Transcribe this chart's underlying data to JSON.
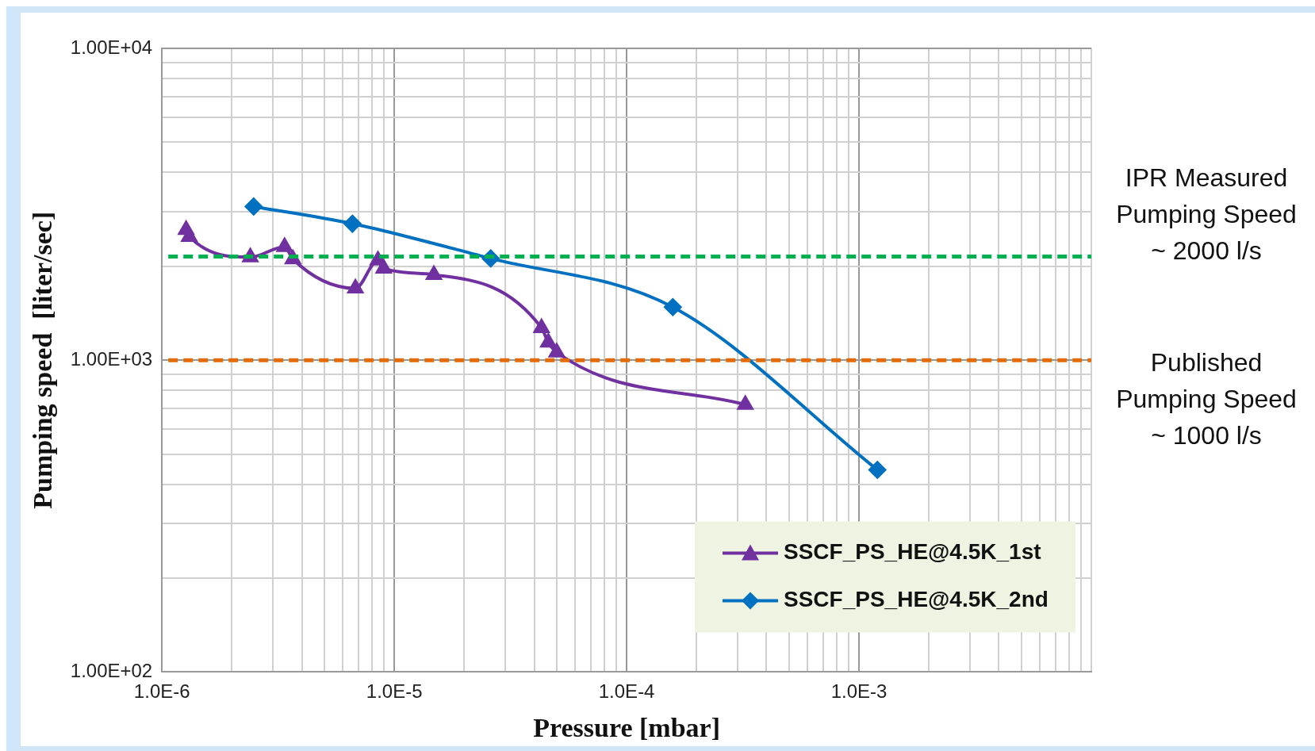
{
  "chart_data": {
    "type": "line",
    "xlabel": "Pressure [mbar]",
    "ylabel": "Pumping speed  [liter/sec]",
    "log": "xy",
    "grid": true,
    "legend": "bottom right",
    "line_style": "solid",
    "xlim": [
      1e-06,
      0.01
    ],
    "ylim": [
      100,
      10000
    ],
    "xticks": [
      {
        "value": 1e-06,
        "label": "1.0E-6"
      },
      {
        "value": 2e-06,
        "label": null
      },
      {
        "value": 3e-06,
        "label": null
      },
      {
        "value": 4e-06,
        "label": null
      },
      {
        "value": 5e-06,
        "label": null
      },
      {
        "value": 6e-06,
        "label": null
      },
      {
        "value": 7e-06,
        "label": null
      },
      {
        "value": 8e-06,
        "label": null
      },
      {
        "value": 9e-06,
        "label": null
      },
      {
        "value": 1e-05,
        "label": "1.0E-5"
      },
      {
        "value": 2e-05,
        "label": null
      },
      {
        "value": 3e-05,
        "label": null
      },
      {
        "value": 4e-05,
        "label": null
      },
      {
        "value": 5e-05,
        "label": null
      },
      {
        "value": 6e-05,
        "label": null
      },
      {
        "value": 7e-05,
        "label": null
      },
      {
        "value": 8e-05,
        "label": null
      },
      {
        "value": 9e-05,
        "label": null
      },
      {
        "value": 0.0001,
        "label": "1.0E-4"
      },
      {
        "value": 0.0002,
        "label": null
      },
      {
        "value": 0.0003,
        "label": null
      },
      {
        "value": 0.0004,
        "label": null
      },
      {
        "value": 0.0005,
        "label": null
      },
      {
        "value": 0.0006,
        "label": null
      },
      {
        "value": 0.0007,
        "label": null
      },
      {
        "value": 0.0008,
        "label": null
      },
      {
        "value": 0.0009,
        "label": null
      },
      {
        "value": 0.001,
        "label": "1.0E-3"
      },
      {
        "value": 0.002,
        "label": null
      },
      {
        "value": 0.003,
        "label": null
      },
      {
        "value": 0.004,
        "label": null
      },
      {
        "value": 0.005,
        "label": null
      },
      {
        "value": 0.006,
        "label": null
      },
      {
        "value": 0.007,
        "label": null
      },
      {
        "value": 0.008,
        "label": null
      },
      {
        "value": 0.009,
        "label": null
      },
      {
        "value": 0.01,
        "label": null
      }
    ],
    "yticks": [
      {
        "value": 100,
        "label": "1.00E+02"
      },
      {
        "value": 200,
        "label": null
      },
      {
        "value": 300,
        "label": null
      },
      {
        "value": 400,
        "label": null
      },
      {
        "value": 500,
        "label": null
      },
      {
        "value": 600,
        "label": null
      },
      {
        "value": 700,
        "label": null
      },
      {
        "value": 800,
        "label": null
      },
      {
        "value": 900,
        "label": null
      },
      {
        "value": 1000,
        "label": "1.00E+03"
      },
      {
        "value": 2000,
        "label": null
      },
      {
        "value": 3000,
        "label": null
      },
      {
        "value": 4000,
        "label": null
      },
      {
        "value": 5000,
        "label": null
      },
      {
        "value": 6000,
        "label": null
      },
      {
        "value": 7000,
        "label": null
      },
      {
        "value": 8000,
        "label": null
      },
      {
        "value": 9000,
        "label": null
      },
      {
        "value": 10000,
        "label": "1.00E+04"
      }
    ],
    "series": [
      {
        "name": "SSCF_PS_HE@4.5K_1st",
        "color": "#7030a0",
        "marker": "triangle",
        "x": [
          1.27e-06,
          1.31e-06,
          2.4e-06,
          3.37e-06,
          3.66e-06,
          6.8e-06,
          8.5e-06,
          9e-06,
          1.48e-05,
          4.3e-05,
          4.6e-05,
          5e-05,
          0.000324
        ],
        "values": [
          2620,
          2490,
          2140,
          2310,
          2110,
          1700,
          2090,
          1970,
          1880,
          1270,
          1140,
          1060,
          720
        ]
      },
      {
        "name": "SSCF_PS_HE@4.5K_2nd",
        "color": "#0070c0",
        "marker": "diamond",
        "x": [
          2.48e-06,
          6.6e-06,
          2.6e-05,
          0.000158,
          0.0012
        ],
        "values": [
          3110,
          2740,
          2120,
          1480,
          445
        ]
      }
    ],
    "ref_lines": [
      {
        "axis": "y",
        "value": 2150,
        "label": "IPR Measured\nPumping Speed\n~ 2000 l/s",
        "color": "#00b050",
        "line_style": "dashed"
      },
      {
        "axis": "y",
        "value": 1000,
        "label": "Published\nPumping Speed\n~ 1000 l/s",
        "color": "#e36c09",
        "line_style": "dashed"
      }
    ]
  }
}
